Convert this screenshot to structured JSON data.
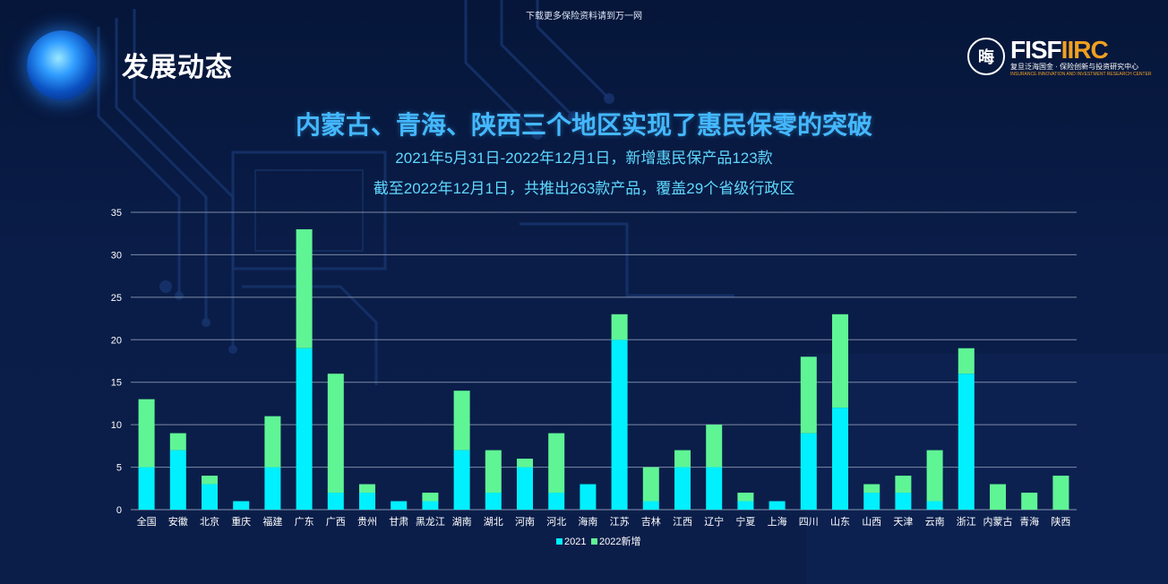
{
  "top_note": "下载更多保险资料请到万一网",
  "section_title": "发展动态",
  "logo": {
    "seal_text": "晦",
    "brand": "FISF",
    "brand_accent": "IIRC",
    "cn": "复旦泛海国金 · 保险创新与投资研究中心",
    "en": "INSURANCE INNOVATION AND INVESTMENT RESEARCH CENTER"
  },
  "headline": "内蒙古、青海、陕西三个地区实现了惠民保零的突破",
  "subtitle_1": "2021年5月31日-2022年12月1日，新增惠民保产品123款",
  "subtitle_2": "截至2022年12月1日，共推出263款产品，覆盖29个省级行政区",
  "colors": {
    "s2021": "#00f0ff",
    "s2022": "#5ff595",
    "grid": "#8a96b0",
    "background": "#0a1d48"
  },
  "chart_data": {
    "type": "bar",
    "stacked": true,
    "categories": [
      "全国",
      "安徽",
      "北京",
      "重庆",
      "福建",
      "广东",
      "广西",
      "贵州",
      "甘肃",
      "黑龙江",
      "湖南",
      "湖北",
      "河南",
      "河北",
      "海南",
      "江苏",
      "吉林",
      "江西",
      "辽宁",
      "宁夏",
      "上海",
      "四川",
      "山东",
      "山西",
      "天津",
      "云南",
      "浙江",
      "内蒙古",
      "青海",
      "陕西"
    ],
    "series": [
      {
        "name": "2021",
        "color": "#00f0ff",
        "values": [
          5,
          7,
          3,
          1,
          5,
          19,
          2,
          2,
          1,
          1,
          7,
          2,
          5,
          2,
          3,
          20,
          1,
          5,
          5,
          1,
          1,
          9,
          12,
          2,
          2,
          1,
          16,
          0,
          0,
          0
        ]
      },
      {
        "name": "2022新增",
        "color": "#5ff595",
        "values": [
          8,
          2,
          1,
          0,
          6,
          14,
          14,
          1,
          0,
          1,
          7,
          5,
          1,
          7,
          0,
          3,
          4,
          2,
          5,
          1,
          0,
          9,
          11,
          1,
          2,
          6,
          3,
          3,
          2,
          4
        ]
      }
    ],
    "ylim": [
      0,
      35
    ],
    "yticks": [
      0,
      5,
      10,
      15,
      20,
      25,
      30,
      35
    ],
    "grid": true,
    "legend_position": "bottom-center"
  }
}
